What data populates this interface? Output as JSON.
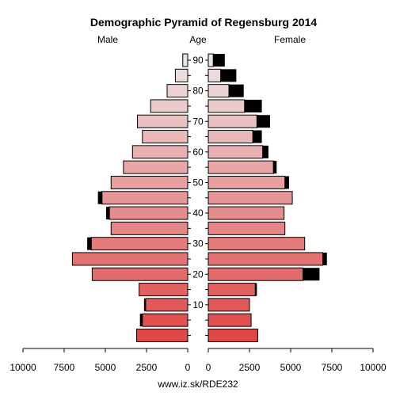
{
  "chart_data": {
    "type": "bar",
    "title": "Demographic Pyramid of Regensburg 2014",
    "left_label": "Male",
    "center_label": "Age",
    "right_label": "Female",
    "footer": "www.iz.sk/RDE232",
    "xlim": [
      0,
      10000
    ],
    "x_ticks": [
      "10000",
      "7500",
      "5000",
      "2500",
      "0"
    ],
    "x_ticks_right": [
      "0",
      "2500",
      "5000",
      "7500",
      "10000"
    ],
    "age_ticks": [
      "10",
      "20",
      "30",
      "40",
      "50",
      "60",
      "70",
      "80",
      "90"
    ],
    "age_groups": [
      "0-4",
      "5-9",
      "10-14",
      "15-19",
      "20-24",
      "25-29",
      "30-34",
      "35-39",
      "40-44",
      "45-49",
      "50-54",
      "55-59",
      "60-64",
      "65-69",
      "70-74",
      "75-79",
      "80-84",
      "85-89",
      "90+"
    ],
    "male": [
      3100,
      2750,
      2550,
      2950,
      5800,
      7000,
      5850,
      4650,
      4750,
      5200,
      4650,
      3900,
      3350,
      2750,
      3050,
      2250,
      1250,
      750,
      300
    ],
    "male_foreign": [
      0,
      150,
      100,
      0,
      0,
      0,
      250,
      0,
      200,
      250,
      0,
      0,
      0,
      0,
      0,
      0,
      0,
      0,
      0
    ],
    "female": [
      3000,
      2600,
      2500,
      2850,
      5750,
      6950,
      5850,
      4650,
      4600,
      5100,
      4650,
      3950,
      3300,
      2700,
      2950,
      2200,
      1250,
      750,
      300
    ],
    "female_foreign": [
      0,
      0,
      0,
      100,
      1000,
      250,
      0,
      0,
      0,
      0,
      250,
      200,
      350,
      550,
      800,
      1050,
      900,
      950,
      700
    ]
  }
}
